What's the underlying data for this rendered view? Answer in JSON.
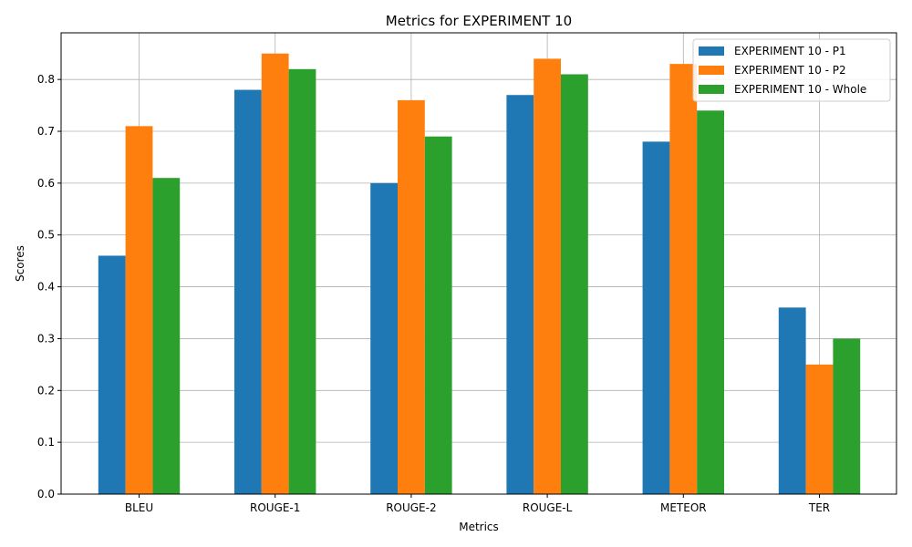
{
  "chart_data": {
    "type": "bar",
    "title": "Metrics for EXPERIMENT 10",
    "xlabel": "Metrics",
    "ylabel": "Scores",
    "categories": [
      "BLEU",
      "ROUGE-1",
      "ROUGE-2",
      "ROUGE-L",
      "METEOR",
      "TER"
    ],
    "series": [
      {
        "name": "EXPERIMENT 10 - P1",
        "color": "#1f77b4",
        "values": [
          0.46,
          0.78,
          0.6,
          0.77,
          0.68,
          0.36
        ]
      },
      {
        "name": "EXPERIMENT 10 - P2",
        "color": "#ff7f0e",
        "values": [
          0.71,
          0.85,
          0.76,
          0.84,
          0.83,
          0.25
        ]
      },
      {
        "name": "EXPERIMENT 10 - Whole",
        "color": "#2ca02c",
        "values": [
          0.61,
          0.82,
          0.69,
          0.81,
          0.74,
          0.3
        ]
      }
    ],
    "ylim": [
      0,
      0.89
    ],
    "yticks": [
      "0.0",
      "0.1",
      "0.2",
      "0.3",
      "0.4",
      "0.5",
      "0.6",
      "0.7",
      "0.8"
    ],
    "grid": true,
    "legend_position": "top-right"
  }
}
